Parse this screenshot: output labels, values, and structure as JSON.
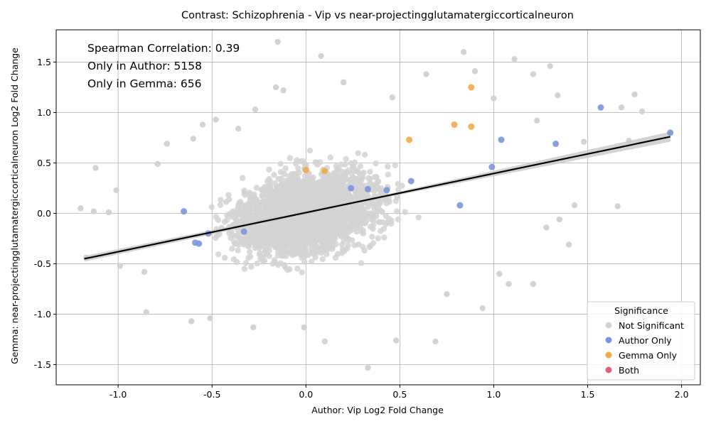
{
  "chart_data": {
    "type": "scatter",
    "title": "Contrast: Schizophrenia - Vip vs near-projectingglutamatergiccorticalneuron",
    "xlabel": "Author: Vip Log2 Fold Change",
    "ylabel": "Gemma: near-projectingglutamatergiccorticalneuron Log2 Fold Change",
    "xlim": [
      -1.33,
      2.1
    ],
    "ylim": [
      -1.7,
      1.82
    ],
    "x_ticks": [
      "-1.0",
      "-0.5",
      "0.0",
      "0.5",
      "1.0",
      "1.5",
      "2.0"
    ],
    "x_tick_values": [
      -1.0,
      -0.5,
      0.0,
      0.5,
      1.0,
      1.5,
      2.0
    ],
    "y_ticks": [
      "-1.5",
      "-1.0",
      "-0.5",
      "0.0",
      "0.5",
      "1.0",
      "1.5"
    ],
    "y_tick_values": [
      -1.5,
      -1.0,
      -0.5,
      0.0,
      0.5,
      1.0,
      1.5
    ],
    "grid": true,
    "annotations": [
      "Spearman Correlation: 0.39",
      "Only in Author: 5158",
      "Only in Gemma: 656"
    ],
    "legend": {
      "title": "Significance",
      "placement": "lower-right",
      "entries": [
        {
          "label": "Not Significant",
          "color": "#d3d3d3"
        },
        {
          "label": "Author Only",
          "color": "#7b96dc"
        },
        {
          "label": "Gemma Only",
          "color": "#f2a94a"
        },
        {
          "label": "Both",
          "color": "#e0607e"
        }
      ]
    },
    "regression_line": {
      "x": [
        -1.18,
        1.94
      ],
      "y": [
        -0.45,
        0.76
      ],
      "color": "#000000"
    },
    "series": [
      {
        "name": "Author Only",
        "color": "#7b96dc",
        "points": [
          {
            "x": 1.94,
            "y": 0.8
          },
          {
            "x": 1.57,
            "y": 1.05
          },
          {
            "x": 1.33,
            "y": 0.69
          },
          {
            "x": 1.04,
            "y": 0.73
          },
          {
            "x": 0.99,
            "y": 0.46
          },
          {
            "x": 0.82,
            "y": 0.08
          },
          {
            "x": 0.56,
            "y": 0.32
          },
          {
            "x": 0.43,
            "y": 0.23
          },
          {
            "x": 0.33,
            "y": 0.24
          },
          {
            "x": 0.24,
            "y": 0.25
          },
          {
            "x": -0.33,
            "y": -0.18
          },
          {
            "x": -0.52,
            "y": -0.2
          },
          {
            "x": -0.59,
            "y": -0.29
          },
          {
            "x": -0.57,
            "y": -0.3
          },
          {
            "x": -0.65,
            "y": 0.02
          }
        ]
      },
      {
        "name": "Gemma Only",
        "color": "#f2a94a",
        "points": [
          {
            "x": 0.88,
            "y": 1.25
          },
          {
            "x": 0.79,
            "y": 0.88
          },
          {
            "x": 0.88,
            "y": 0.86
          },
          {
            "x": 0.55,
            "y": 0.73
          },
          {
            "x": 0.0,
            "y": 0.43
          },
          {
            "x": 0.1,
            "y": 0.42
          }
        ]
      },
      {
        "name": "Not Significant",
        "color": "#d3d3d3",
        "points": [
          {
            "x": -0.15,
            "y": 1.7
          },
          {
            "x": 0.08,
            "y": 1.56
          },
          {
            "x": 0.84,
            "y": 1.6
          },
          {
            "x": 1.11,
            "y": 1.53
          },
          {
            "x": 1.3,
            "y": 1.46
          },
          {
            "x": 0.9,
            "y": 1.41
          },
          {
            "x": 1.21,
            "y": 1.38
          },
          {
            "x": 0.64,
            "y": 1.38
          },
          {
            "x": 1.75,
            "y": 1.18
          },
          {
            "x": 1.34,
            "y": 1.17
          },
          {
            "x": 1.79,
            "y": 1.01
          },
          {
            "x": 1.68,
            "y": 1.05
          },
          {
            "x": -0.16,
            "y": 1.25
          },
          {
            "x": -0.12,
            "y": 1.22
          },
          {
            "x": 0.2,
            "y": 1.3
          },
          {
            "x": 0.46,
            "y": 1.15
          },
          {
            "x": 1.0,
            "y": 1.14
          },
          {
            "x": 1.23,
            "y": 0.92
          },
          {
            "x": 1.48,
            "y": 0.71
          },
          {
            "x": 1.72,
            "y": 0.72
          },
          {
            "x": 1.66,
            "y": 0.07
          },
          {
            "x": 1.43,
            "y": 0.08
          },
          {
            "x": 1.35,
            "y": -0.06
          },
          {
            "x": 1.28,
            "y": -0.14
          },
          {
            "x": 1.4,
            "y": -0.31
          },
          {
            "x": 1.03,
            "y": -0.6
          },
          {
            "x": 1.08,
            "y": -0.7
          },
          {
            "x": 1.21,
            "y": -0.7
          },
          {
            "x": 0.94,
            "y": -0.94
          },
          {
            "x": 0.75,
            "y": -0.8
          },
          {
            "x": 0.69,
            "y": -1.27
          },
          {
            "x": 0.48,
            "y": -1.26
          },
          {
            "x": 0.33,
            "y": -1.53
          },
          {
            "x": 0.1,
            "y": -1.27
          },
          {
            "x": -0.01,
            "y": -1.13
          },
          {
            "x": -0.28,
            "y": -1.13
          },
          {
            "x": -0.51,
            "y": -1.04
          },
          {
            "x": -0.61,
            "y": -1.07
          },
          {
            "x": -0.85,
            "y": -0.98
          },
          {
            "x": -0.86,
            "y": -0.58
          },
          {
            "x": -0.99,
            "y": -0.52
          },
          {
            "x": -1.17,
            "y": -0.44
          },
          {
            "x": -1.2,
            "y": 0.05
          },
          {
            "x": -1.13,
            "y": 0.02
          },
          {
            "x": -1.05,
            "y": 0.01
          },
          {
            "x": -1.01,
            "y": 0.23
          },
          {
            "x": -1.12,
            "y": 0.45
          },
          {
            "x": -0.79,
            "y": 0.49
          },
          {
            "x": -0.74,
            "y": 0.69
          },
          {
            "x": -0.6,
            "y": 0.74
          },
          {
            "x": -0.55,
            "y": 0.88
          },
          {
            "x": -0.36,
            "y": 0.84
          },
          {
            "x": -0.27,
            "y": 1.03
          },
          {
            "x": -0.48,
            "y": 0.93
          }
        ]
      }
    ],
    "cloud_note": ""
  }
}
